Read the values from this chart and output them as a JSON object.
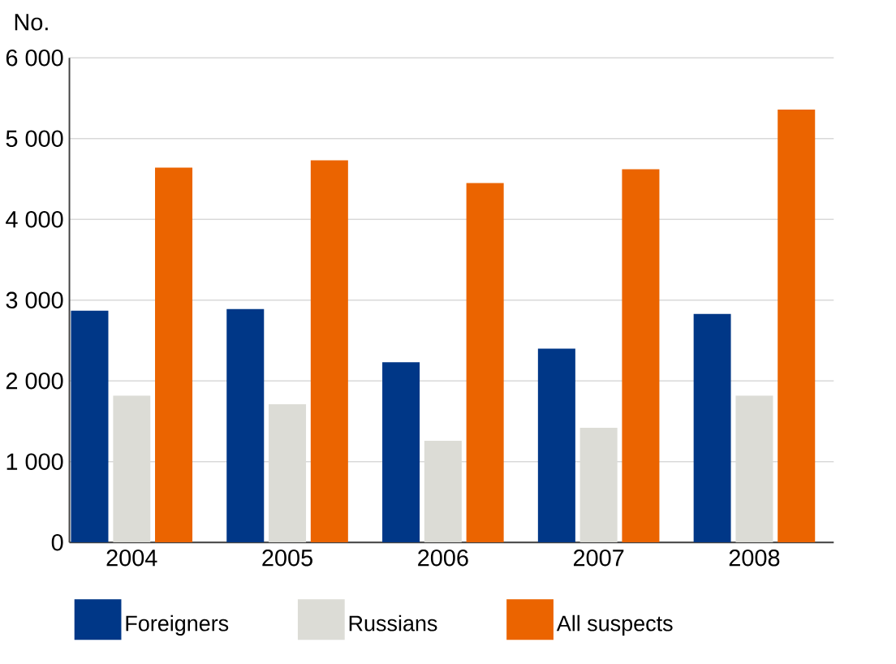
{
  "chart_data": {
    "type": "bar",
    "ylabel": "No.",
    "categories": [
      "2004",
      "2005",
      "2006",
      "2007",
      "2008"
    ],
    "series": [
      {
        "name": "Foreigners",
        "color": "#003787",
        "values": [
          2870,
          2890,
          2230,
          2400,
          2830
        ]
      },
      {
        "name": "Russians",
        "color": "#dcdcd6",
        "values": [
          1820,
          1710,
          1260,
          1420,
          1820
        ]
      },
      {
        "name": "All suspects",
        "color": "#eb6400",
        "values": [
          4640,
          4730,
          4450,
          4620,
          5360
        ]
      }
    ],
    "ylim": [
      0,
      6000
    ],
    "yticks": [
      0,
      {
        "value": 1000,
        "label": "1 000"
      },
      {
        "value": 2000,
        "label": "2 000"
      },
      {
        "value": 3000,
        "label": "3 000"
      },
      {
        "value": 4000,
        "label": "4 000"
      },
      {
        "value": 5000,
        "label": "5 000"
      },
      {
        "value": 6000,
        "label": "6 000"
      }
    ],
    "grid": "y",
    "legend": "bottom"
  }
}
